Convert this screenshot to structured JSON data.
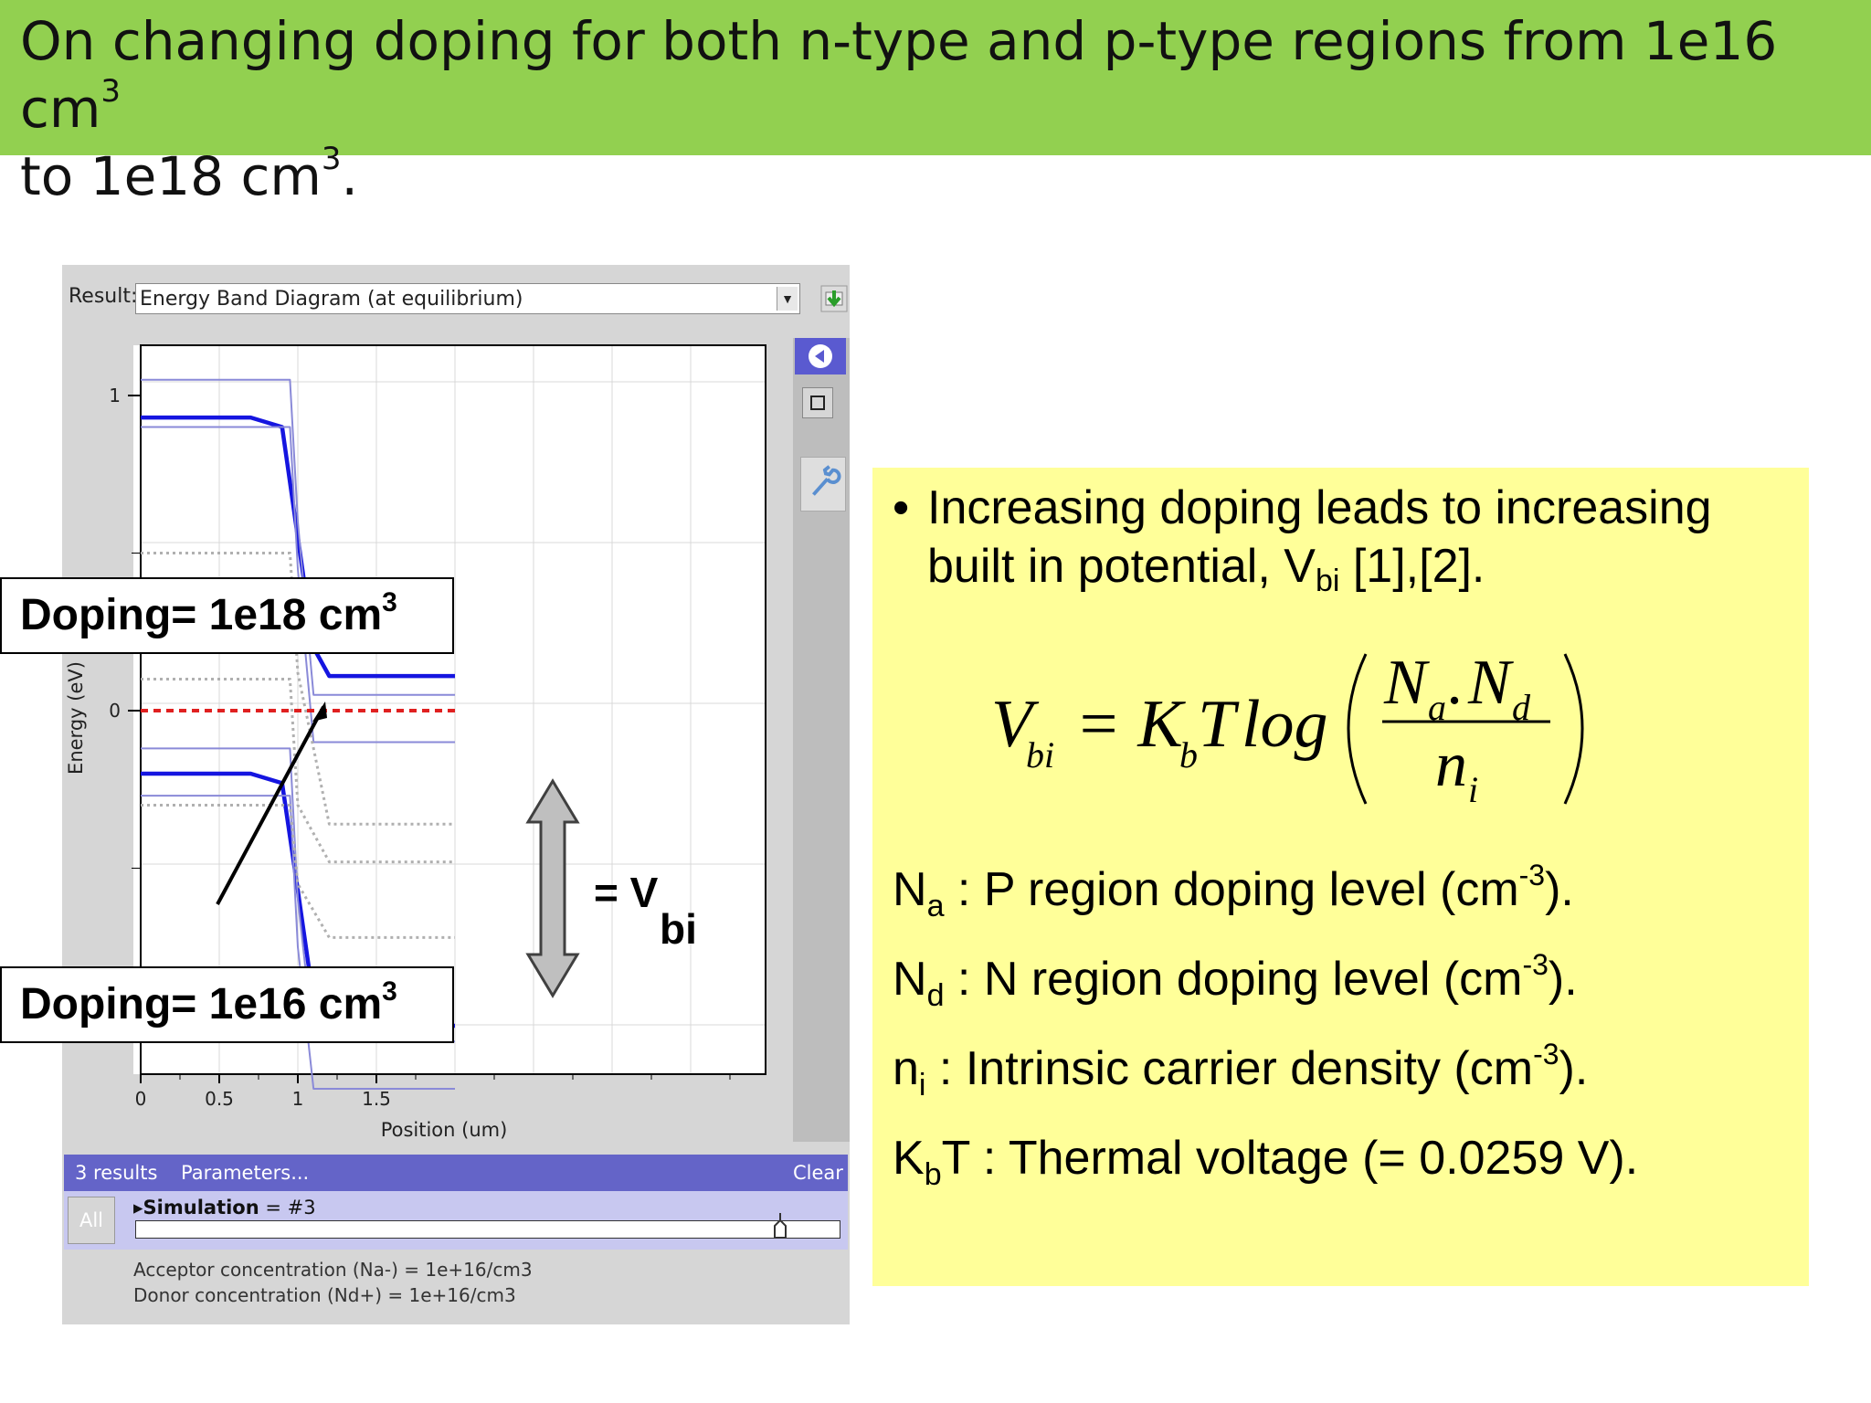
{
  "header": {
    "line1": "On changing doping for both n-type and p-type regions from 1e16 cm",
    "line1_sup": "3",
    "line2": "to 1e18 cm",
    "line2_sup": "3",
    "line2_end": "."
  },
  "app": {
    "result_label": "Result:",
    "result_value": "Energy Band Diagram (at equilibrium)",
    "results_count": "3 results",
    "parameters_label": "Parameters...",
    "clear_label": "Clear",
    "all_label": "All",
    "simulation_label": "Simulation",
    "simulation_value": "= #3",
    "acceptor_line": "Acceptor concentration (Na-) = 1e+16/cm3",
    "donor_line": "Donor concentration (Nd+) = 1e+16/cm3",
    "accent_color": "#6464c8"
  },
  "chart_data": {
    "type": "line",
    "title": "",
    "xlabel": "Position (um)",
    "ylabel": "Energy (eV)",
    "xlim": [
      0,
      2.0
    ],
    "x_ticks": [
      "0",
      "0.5",
      "1",
      "1.5"
    ],
    "y_ticks": [
      "1",
      "0"
    ],
    "series": [
      {
        "style": "thick-blue",
        "x": [
          0,
          0.7,
          0.9,
          1.0,
          1.1,
          1.2,
          1.4,
          2.0
        ],
        "y": [
          0.93,
          0.93,
          0.9,
          0.55,
          0.2,
          0.11,
          0.11,
          0.11
        ]
      },
      {
        "style": "thick-blue",
        "x": [
          0,
          0.7,
          0.9,
          1.0,
          1.1,
          1.2,
          1.4,
          2.0
        ],
        "y": [
          -0.2,
          -0.2,
          -0.23,
          -0.57,
          -0.92,
          -1.0,
          -1.0,
          -1.0
        ]
      },
      {
        "style": "thin-blue",
        "x": [
          0,
          0.95,
          1.0,
          1.1,
          2.0
        ],
        "y": [
          1.05,
          1.05,
          0.6,
          0.05,
          0.05
        ]
      },
      {
        "style": "thin-blue",
        "x": [
          0,
          0.95,
          1.0,
          1.1,
          2.0
        ],
        "y": [
          0.9,
          0.9,
          0.45,
          -0.1,
          -0.1
        ]
      },
      {
        "style": "thin-blue",
        "x": [
          0,
          0.95,
          1.0,
          1.1,
          2.0
        ],
        "y": [
          -0.12,
          -0.12,
          -0.6,
          -1.05,
          -1.05
        ]
      },
      {
        "style": "thin-blue",
        "x": [
          0,
          0.95,
          1.0,
          1.1,
          2.0
        ],
        "y": [
          -0.27,
          -0.27,
          -0.75,
          -1.2,
          -1.2
        ]
      },
      {
        "style": "dotted-grey",
        "x": [
          0,
          0.95,
          1.0,
          1.2,
          2.0
        ],
        "y": [
          0.5,
          0.5,
          0.12,
          -0.36,
          -0.36
        ]
      },
      {
        "style": "dotted-grey",
        "x": [
          0,
          0.95,
          1.0,
          1.2,
          2.0
        ],
        "y": [
          0.1,
          0.1,
          -0.3,
          -0.48,
          -0.48
        ]
      },
      {
        "style": "dotted-grey",
        "x": [
          0,
          0.95,
          1.0,
          1.2,
          2.0
        ],
        "y": [
          -0.3,
          -0.3,
          -0.55,
          -0.72,
          -0.72
        ]
      },
      {
        "style": "dashed-red",
        "x": [
          0,
          2.0
        ],
        "y": [
          0,
          0
        ]
      }
    ]
  },
  "annotations": {
    "doping_high": "Doping= 1e18 cm",
    "doping_high_sup": "3",
    "doping_low": "Doping= 1e16 cm",
    "doping_low_sup": "3",
    "vbi_eq": "= V",
    "vbi_sub": "bi"
  },
  "note": {
    "bullet_dot": "•",
    "bullet_main": "Increasing doping leads to increasing built in potential, V",
    "bullet_sub": "bi",
    "bullet_end": " [1],[2].",
    "formula": {
      "lhs": "V",
      "lhs_sub": "bi",
      "eq": "= K",
      "eq_sub": "b",
      "t": "T",
      "log": "log",
      "num_a": "N",
      "num_a_sub": "a",
      "dot": ".",
      "num_d": "N",
      "num_d_sub": "d",
      "den": "n",
      "den_sub": "i"
    },
    "defs": [
      {
        "sym": "N",
        "sub": "a",
        "text": " : P region doping level (cm",
        "sup": "-3",
        "end": ")."
      },
      {
        "sym": "N",
        "sub": "d",
        "text": " : N region doping level (cm",
        "sup": "-3",
        "end": ")."
      },
      {
        "sym": "n",
        "sub": "i",
        "text": " : Intrinsic carrier density (cm",
        "sup": "-3",
        "end": ")."
      },
      {
        "sym": "K",
        "sub": "b",
        "text": "T : Thermal voltage (= 0.0259 V).",
        "sup": "",
        "end": ""
      }
    ],
    "bg_color": "#ffff99"
  }
}
